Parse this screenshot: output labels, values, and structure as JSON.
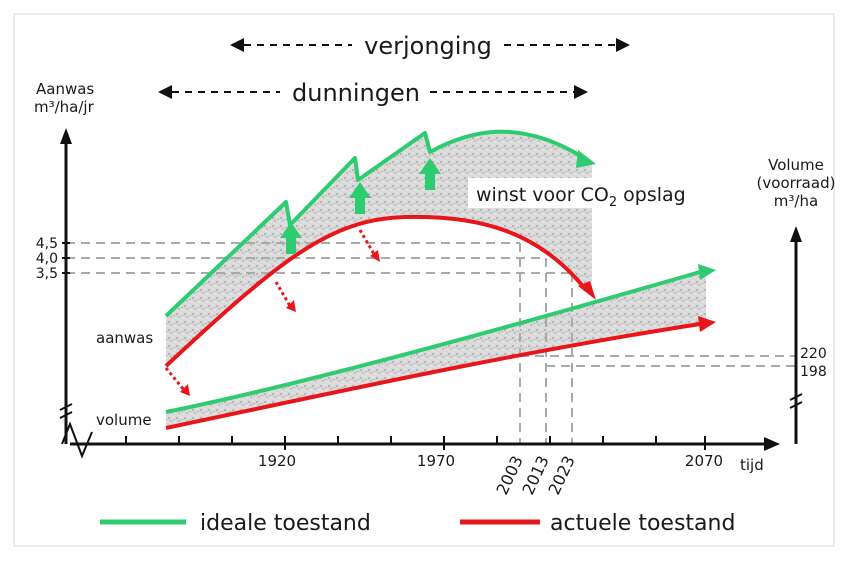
{
  "labels": {
    "verjonging": "verjonging",
    "dunningen": "dunningen",
    "left_axis_line1": "Aanwas",
    "left_axis_line2": "m³/ha/jr",
    "right_axis_line1": "Volume",
    "right_axis_line2": "(voorraad)",
    "right_axis_line3": "m³/ha",
    "winst_prefix": "winst voor CO",
    "winst_sub": "2",
    "winst_suffix": " opslag",
    "aanwas": "aanwas",
    "volume": "volume",
    "tijd": "tijd"
  },
  "left_ticks": [
    "4,5",
    "4,0",
    "3,5"
  ],
  "right_ticks": [
    "220",
    "198"
  ],
  "x_ticks": [
    "1920",
    "1970",
    "2070"
  ],
  "rotated_years": [
    "2003",
    "2013",
    "2023"
  ],
  "legend": {
    "ideal": {
      "label": "ideale toestand",
      "color": "#2ecc71"
    },
    "actual": {
      "label": "actuele toestand",
      "color": "#e8151b"
    }
  },
  "colors": {
    "ideal": "#2ecc71",
    "actual": "#e8151b",
    "guide": "#aaaaaa",
    "axis": "#111111"
  }
}
